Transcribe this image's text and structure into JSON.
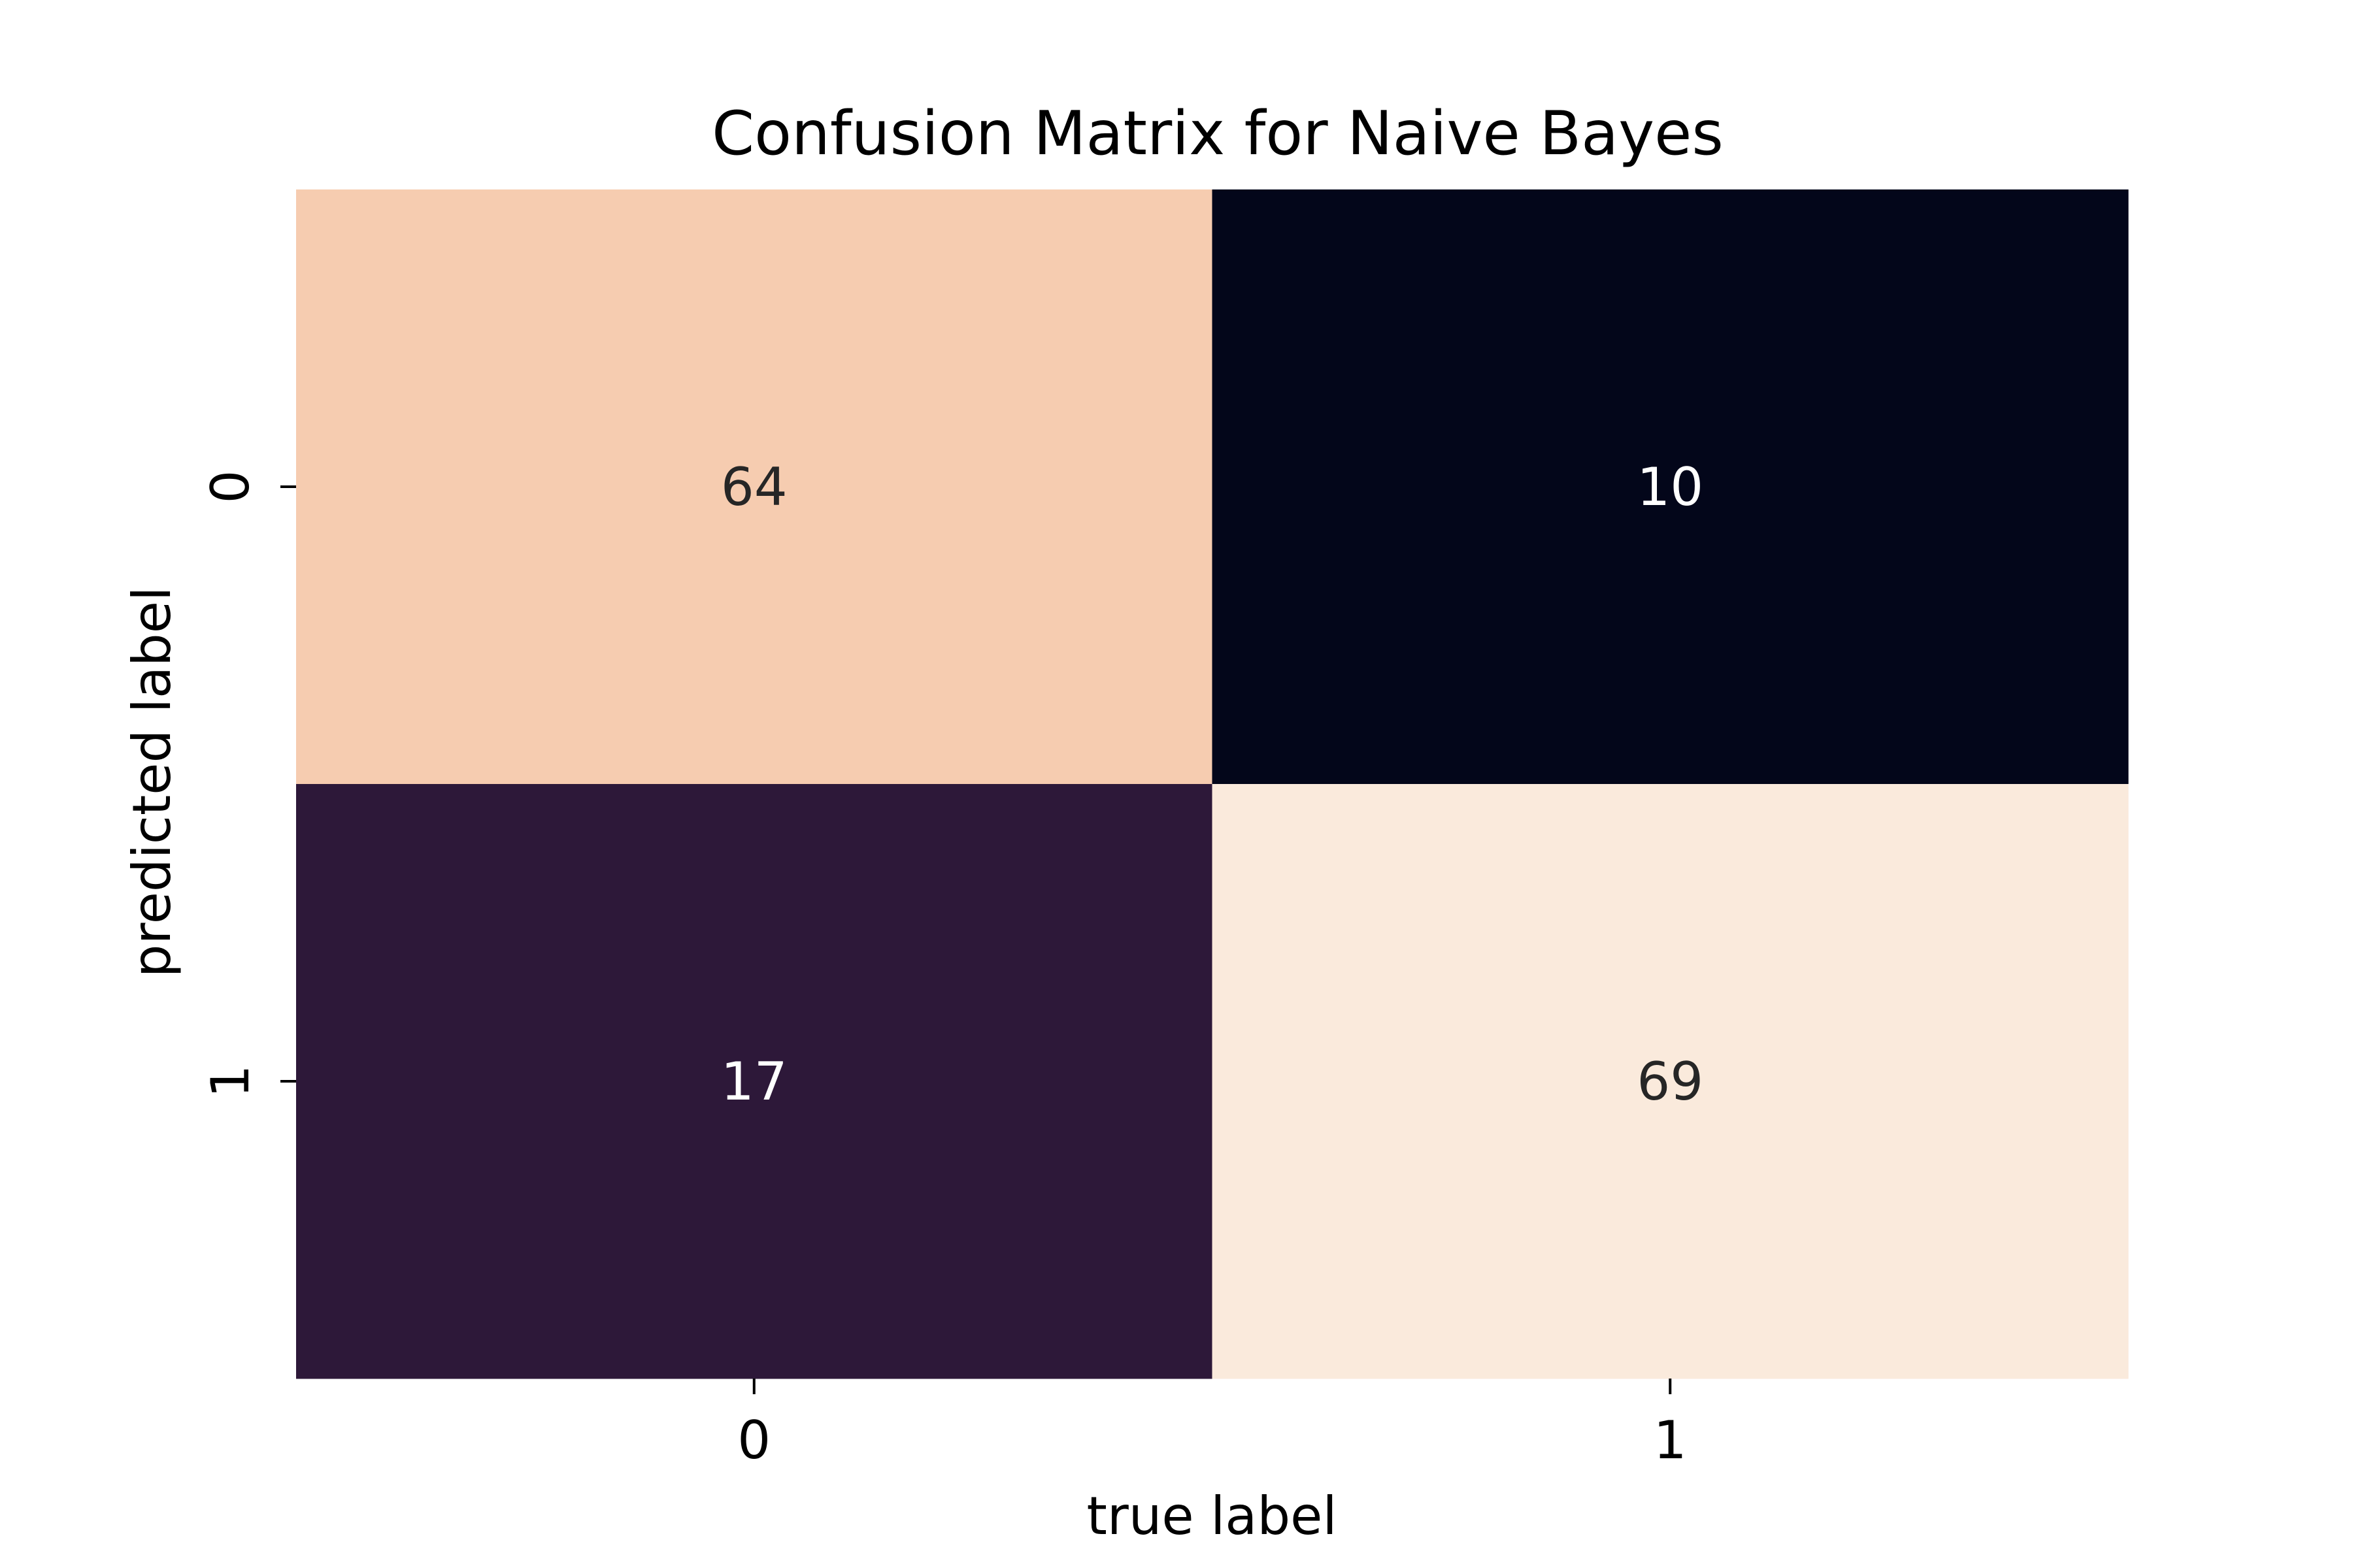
{
  "chart_data": {
    "type": "heatmap",
    "title": "Confusion Matrix for Naive Bayes",
    "xlabel": "true label",
    "ylabel": "predicted label",
    "x_categories": [
      "0",
      "1"
    ],
    "y_categories": [
      "0",
      "1"
    ],
    "values": [
      [
        64,
        10
      ],
      [
        17,
        69
      ]
    ],
    "value_labels": [
      [
        "64",
        "10"
      ],
      [
        "17",
        "69"
      ]
    ],
    "colorbar": false,
    "grid": false,
    "colormap": "rocket",
    "cell_colors": [
      [
        "#f6ccb0",
        "#03061a"
      ],
      [
        "#2d1839",
        "#faeadc"
      ]
    ],
    "annotation_colors": [
      [
        "#262626",
        "#ffffff"
      ],
      [
        "#ffffff",
        "#262626"
      ]
    ]
  }
}
